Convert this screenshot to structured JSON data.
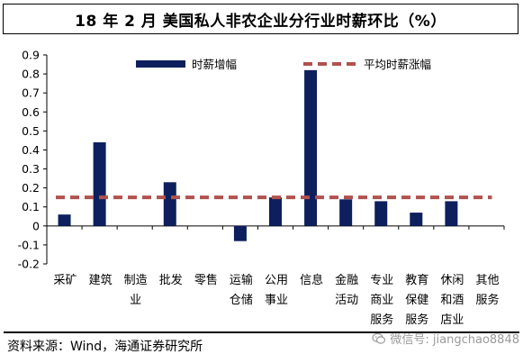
{
  "title": "18 年 2 月  美国私人非农企业分行业时薪环比（%）",
  "source": "资料来源：Wind，海通证券研究所",
  "watermark": "微信号: jiangchao8848",
  "chart_data": {
    "type": "bar",
    "categories": [
      [
        "采矿"
      ],
      [
        "建筑"
      ],
      [
        "制造",
        "业"
      ],
      [
        "批发"
      ],
      [
        "零售"
      ],
      [
        "运输",
        "仓储"
      ],
      [
        "公用",
        "事业"
      ],
      [
        "信息"
      ],
      [
        "金融",
        "活动"
      ],
      [
        "专业",
        "商业",
        "服务"
      ],
      [
        "教育",
        "保健",
        "服务"
      ],
      [
        "休闲",
        "和酒",
        "店业"
      ],
      [
        "其他",
        "服务"
      ]
    ],
    "series": [
      {
        "name": "时薪增幅",
        "values": [
          0.06,
          0.44,
          0.0,
          0.23,
          0.0,
          -0.08,
          0.15,
          0.82,
          0.14,
          0.13,
          0.07,
          0.13,
          0.0
        ],
        "color": "#0d1f5c"
      },
      {
        "name": "平均时薪涨幅",
        "value": 0.15,
        "style": "dashed-line",
        "color": "#b0524f"
      }
    ],
    "ylim": [
      -0.2,
      0.9
    ],
    "yticks": [
      "-0.2",
      "-0.1",
      "0",
      "0.1",
      "0.2",
      "0.3",
      "0.4",
      "0.5",
      "0.6",
      "0.7",
      "0.8",
      "0.9"
    ],
    "legend_placement": "top",
    "grid": false
  }
}
